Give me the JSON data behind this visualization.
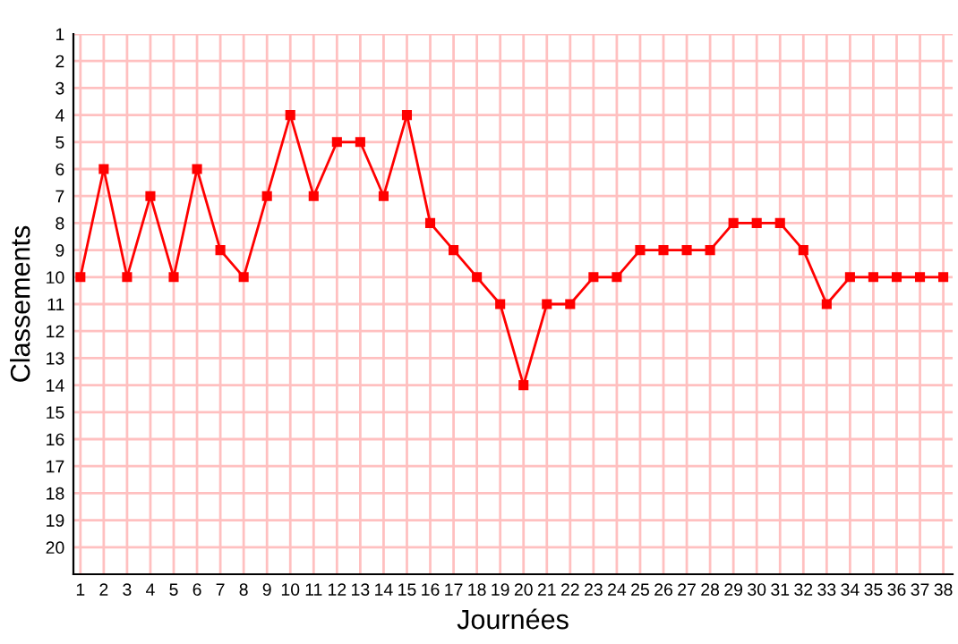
{
  "chart_data": {
    "type": "line",
    "xlabel": "Journées",
    "ylabel": "Classements",
    "x": [
      1,
      2,
      3,
      4,
      5,
      6,
      7,
      8,
      9,
      10,
      11,
      12,
      13,
      14,
      15,
      16,
      17,
      18,
      19,
      20,
      21,
      22,
      23,
      24,
      25,
      26,
      27,
      28,
      29,
      30,
      31,
      32,
      33,
      34,
      35,
      36,
      37,
      38
    ],
    "series": [
      {
        "color": "#ff0000",
        "values": [
          10,
          6,
          10,
          7,
          10,
          6,
          9,
          10,
          7,
          4,
          7,
          5,
          5,
          7,
          4,
          8,
          9,
          10,
          11,
          14,
          11,
          11,
          10,
          10,
          9,
          9,
          9,
          9,
          8,
          8,
          8,
          9,
          11,
          10,
          10,
          10,
          10,
          10
        ]
      }
    ],
    "xlim": [
      0.7,
      38.4
    ],
    "ylim": [
      21,
      1
    ],
    "xticks": [
      1,
      2,
      3,
      4,
      5,
      6,
      7,
      8,
      9,
      10,
      11,
      12,
      13,
      14,
      15,
      16,
      17,
      18,
      19,
      20,
      21,
      22,
      23,
      24,
      25,
      26,
      27,
      28,
      29,
      30,
      31,
      32,
      33,
      34,
      35,
      36,
      37,
      38
    ],
    "yticks": [
      1,
      2,
      3,
      4,
      5,
      6,
      7,
      8,
      9,
      10,
      11,
      12,
      13,
      14,
      15,
      16,
      17,
      18,
      19,
      20
    ],
    "grid": true,
    "marker": "square",
    "line_style": "solid"
  }
}
